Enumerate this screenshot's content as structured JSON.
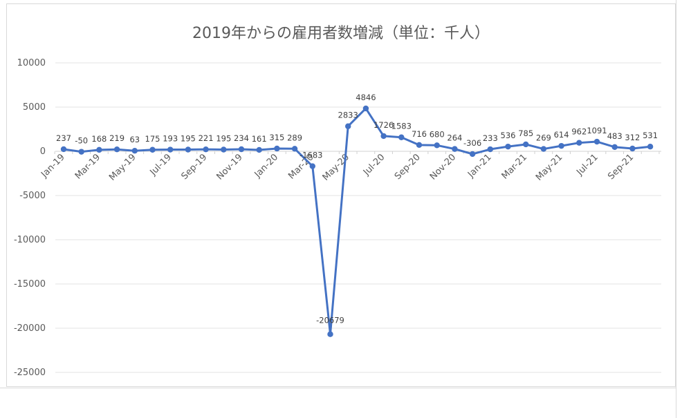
{
  "chart_data": {
    "type": "line",
    "title": "2019年からの雇用者数増減（単位：千人）",
    "xlabel": "",
    "ylabel": "",
    "ylim": [
      -25000,
      10000
    ],
    "yticks": [
      10000,
      5000,
      0,
      -5000,
      -10000,
      -15000,
      -20000,
      -25000
    ],
    "grid": true,
    "legend": "none",
    "line_color": "#4472c4",
    "x": [
      "Jan-19",
      "Feb-19",
      "Mar-19",
      "Apr-19",
      "May-19",
      "Jun-19",
      "Jul-19",
      "Aug-19",
      "Sep-19",
      "Oct-19",
      "Nov-19",
      "Dec-19",
      "Jan-20",
      "Feb-20",
      "Mar-20",
      "Apr-20",
      "May-20",
      "Jun-20",
      "Jul-20",
      "Aug-20",
      "Sep-20",
      "Oct-20",
      "Nov-20",
      "Dec-20",
      "Jan-21",
      "Feb-21",
      "Mar-21",
      "Apr-21",
      "May-21",
      "Jun-21",
      "Jul-21",
      "Aug-21",
      "Sep-21",
      "Oct-21"
    ],
    "x_tick_labels": [
      "Jan-19",
      "Mar-19",
      "May-19",
      "Jul-19",
      "Sep-19",
      "Nov-19",
      "Jan-20",
      "Mar-20",
      "May-20",
      "Jul-20",
      "Sep-20",
      "Nov-20",
      "Jan-21",
      "Mar-21",
      "May-21",
      "Jul-21",
      "Sep-21"
    ],
    "values": [
      237,
      -50,
      168,
      219,
      63,
      175,
      193,
      195,
      221,
      195,
      234,
      161,
      315,
      289,
      -1683,
      -20679,
      2833,
      4846,
      1726,
      1583,
      716,
      680,
      264,
      -306,
      233,
      536,
      785,
      269,
      614,
      962,
      1091,
      483,
      312,
      531
    ]
  }
}
